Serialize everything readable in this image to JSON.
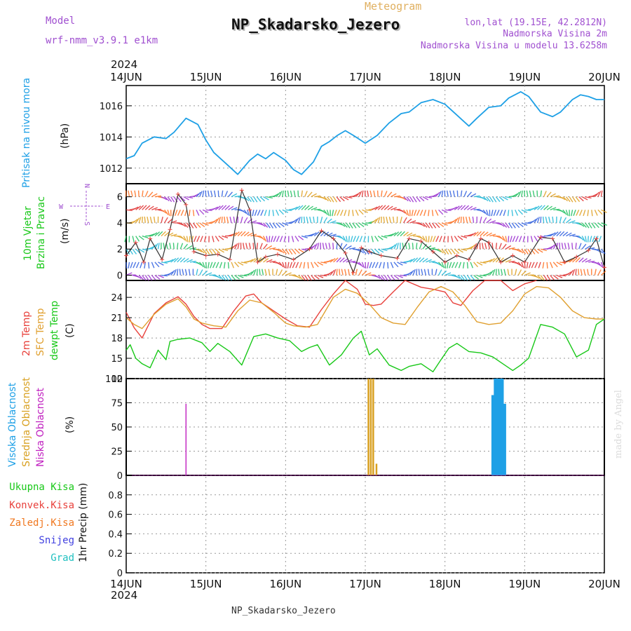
{
  "header": {
    "model_label": "Model",
    "model_name": "wrf-nmm_v3.9.1 e1km",
    "meteogram_label": "Meteogram",
    "station_title": "NP_Skadarsko_Jezero",
    "coords": "lon,lat (19.15E, 42.2812N)",
    "altitude": "Nadmorska Visina 2m",
    "model_altitude": "Nadmorska Visina u modelu 13.6258m"
  },
  "footer": {
    "station": "NP_Skadarsko_Jezero",
    "credit": "made by Angel"
  },
  "time_axis": {
    "year": "2024",
    "labels": [
      "14JUN",
      "15JUN",
      "16JUN",
      "17JUN",
      "18JUN",
      "19JUN",
      "20JUN"
    ]
  },
  "panels": {
    "pressure": {
      "title": "Pritisak na nivou mora",
      "unit": "(hPa)"
    },
    "wind": {
      "title_1": "10m Vjetar",
      "title_2": "Brzina i Pravac",
      "unit": "(m/s)",
      "compass": {
        "n": "N",
        "s": "S",
        "e": "E",
        "w": "W"
      }
    },
    "temp": {
      "t2m": "2m Temp",
      "sfc": "SFC Temp",
      "dew": "dewpt Temp",
      "unit": "(C)"
    },
    "cloud": {
      "high": "Visoka Oblacnost",
      "mid": "Srednja Oblacnost",
      "low": "Niska Oblacnost",
      "unit": "(%)"
    },
    "precip": {
      "total": "Ukupna Kisa",
      "conv": "Konvek.Kisa",
      "snowfall": "Zaledj.Kisa",
      "snow": "Snijeg",
      "hail": "Grad",
      "unit": "1hr Precip (mm)"
    }
  },
  "colors": {
    "pressure": "#1ea0e6",
    "t2m": "#e8413c",
    "sfc": "#e0a030",
    "dew": "#18c818",
    "cloud_high": "#1ea0e6",
    "cloud_mid": "#d8a020",
    "cloud_low": "#c020c0",
    "precip_total": "#18c818",
    "precip_conv": "#e8413c",
    "precip_snowfall": "#f07820",
    "precip_snow": "#4040e0",
    "precip_hail": "#20c0c0",
    "title_purple": "#a050d0",
    "meteogram_orange": "#e0b060"
  },
  "chart_data": [
    {
      "type": "line",
      "name": "pressure",
      "ylabel": "(hPa)",
      "ylim": [
        1011,
        1017.3
      ],
      "yticks": [
        1012,
        1014,
        1016
      ],
      "x": [
        0,
        0.1,
        0.2,
        0.35,
        0.5,
        0.6,
        0.75,
        0.9,
        1.0,
        1.1,
        1.25,
        1.4,
        1.55,
        1.65,
        1.75,
        1.85,
        2.0,
        2.1,
        2.2,
        2.35,
        2.45,
        2.55,
        2.65,
        2.75,
        2.85,
        3.0,
        3.15,
        3.3,
        3.45,
        3.55,
        3.7,
        3.85,
        4.0,
        4.15,
        4.3,
        4.4,
        4.55,
        4.7,
        4.8,
        4.95,
        5.05,
        5.2,
        5.35,
        5.45,
        5.6,
        5.7,
        5.8,
        5.9,
        6.0
      ],
      "y": [
        1012.6,
        1012.8,
        1013.6,
        1014.0,
        1013.9,
        1014.3,
        1015.2,
        1014.8,
        1013.8,
        1013.0,
        1012.3,
        1011.6,
        1012.5,
        1012.9,
        1012.6,
        1013.0,
        1012.5,
        1011.9,
        1011.6,
        1012.4,
        1013.4,
        1013.7,
        1014.1,
        1014.4,
        1014.1,
        1013.6,
        1014.1,
        1014.9,
        1015.5,
        1015.6,
        1016.2,
        1016.4,
        1016.1,
        1015.4,
        1014.7,
        1015.2,
        1015.9,
        1016.0,
        1016.5,
        1016.9,
        1016.6,
        1015.6,
        1015.3,
        1015.6,
        1016.4,
        1016.7,
        1016.6,
        1016.4,
        1016.4
      ]
    },
    {
      "type": "line",
      "name": "wind_speed",
      "ylabel": "(m/s)",
      "ylim": [
        -0.4,
        7
      ],
      "yticks": [
        0,
        2,
        4,
        6
      ],
      "x": [
        0,
        0.12,
        0.22,
        0.3,
        0.45,
        0.55,
        0.65,
        0.75,
        0.85,
        1.0,
        1.15,
        1.3,
        1.45,
        1.55,
        1.65,
        1.75,
        1.9,
        2.1,
        2.3,
        2.45,
        2.6,
        2.75,
        2.85,
        2.95,
        3.05,
        3.2,
        3.4,
        3.55,
        3.7,
        3.85,
        4.0,
        4.15,
        4.3,
        4.45,
        4.55,
        4.7,
        4.85,
        5.0,
        5.2,
        5.35,
        5.5,
        5.65,
        5.8,
        5.9,
        6.0
      ],
      "y": [
        1.5,
        2.5,
        1.0,
        2.8,
        1.2,
        3.5,
        6.2,
        5.4,
        1.8,
        1.5,
        1.6,
        1.2,
        6.5,
        5.0,
        1.0,
        1.4,
        1.6,
        1.2,
        2.0,
        3.4,
        2.8,
        1.7,
        0.2,
        2.1,
        1.8,
        1.5,
        1.3,
        2.8,
        2.6,
        1.8,
        1.0,
        1.5,
        1.2,
        2.8,
        2.5,
        1.0,
        1.5,
        1.0,
        2.9,
        2.8,
        1.0,
        1.4,
        1.9,
        2.8,
        0.6
      ]
    },
    {
      "type": "line",
      "name": "temperature",
      "ylabel": "(C)",
      "ylim": [
        12,
        26.5
      ],
      "yticks": [
        12,
        15,
        18,
        21,
        24
      ],
      "series": [
        {
          "name": "2m Temp",
          "x": [
            0,
            0.1,
            0.2,
            0.35,
            0.5,
            0.65,
            0.75,
            0.85,
            0.95,
            1.05,
            1.2,
            1.35,
            1.5,
            1.6,
            1.7,
            1.85,
            2.0,
            2.15,
            2.3,
            2.45,
            2.6,
            2.75,
            2.9,
            3.0,
            3.1,
            3.2,
            3.35,
            3.5,
            3.7,
            3.85,
            4.0,
            4.1,
            4.2,
            4.35,
            4.5,
            4.7,
            4.85,
            5.0,
            5.15
          ],
          "y": [
            21.8,
            19.5,
            18.0,
            21.6,
            23.2,
            24.1,
            23.0,
            21.2,
            20.0,
            19.4,
            19.4,
            22.0,
            24.2,
            24.5,
            23.2,
            22.0,
            20.8,
            19.8,
            19.6,
            22.2,
            24.5,
            26.5,
            25.2,
            23.0,
            22.8,
            23.0,
            24.8,
            26.5,
            25.5,
            25.2,
            24.8,
            23.2,
            22.8,
            25.0,
            26.5,
            26.5,
            25.0,
            26.0,
            26.5
          ]
        },
        {
          "name": "SFC Temp",
          "x": [
            0,
            0.1,
            0.2,
            0.35,
            0.5,
            0.65,
            0.75,
            0.85,
            0.95,
            1.1,
            1.25,
            1.4,
            1.55,
            1.7,
            1.85,
            2.0,
            2.1,
            2.25,
            2.4,
            2.5,
            2.6,
            2.75,
            2.9,
            3.05,
            3.2,
            3.35,
            3.5,
            3.65,
            3.8,
            3.95,
            4.1,
            4.25,
            4.4,
            4.55,
            4.7,
            4.85,
            5.0,
            5.15,
            5.3,
            5.45,
            5.6,
            5.75,
            5.9,
            6.0
          ],
          "y": [
            21.0,
            20.0,
            19.4,
            21.5,
            23.0,
            23.8,
            22.6,
            20.8,
            20.2,
            19.8,
            19.6,
            22.0,
            23.6,
            23.2,
            21.8,
            20.2,
            19.8,
            19.6,
            20.0,
            22.0,
            24.0,
            25.2,
            24.6,
            23.0,
            21.0,
            20.2,
            20.0,
            22.5,
            24.8,
            25.6,
            24.8,
            22.8,
            20.4,
            20.0,
            20.2,
            22.0,
            24.5,
            25.6,
            25.4,
            24.0,
            22.0,
            21.0,
            20.8,
            20.8
          ]
        },
        {
          "name": "dewpt Temp",
          "x": [
            0,
            0.05,
            0.12,
            0.2,
            0.3,
            0.4,
            0.5,
            0.55,
            0.65,
            0.8,
            0.95,
            1.05,
            1.15,
            1.3,
            1.45,
            1.6,
            1.75,
            1.9,
            2.05,
            2.2,
            2.3,
            2.4,
            2.55,
            2.7,
            2.85,
            2.95,
            3.05,
            3.15,
            3.3,
            3.45,
            3.55,
            3.7,
            3.85,
            3.95,
            4.05,
            4.15,
            4.3,
            4.45,
            4.6,
            4.7,
            4.85,
            4.95,
            5.05,
            5.2,
            5.35,
            5.5,
            5.65,
            5.8,
            5.9,
            6.0
          ],
          "y": [
            16.2,
            17.0,
            15.0,
            14.2,
            13.6,
            16.2,
            14.8,
            17.5,
            17.8,
            18.0,
            17.3,
            16.0,
            17.2,
            16.0,
            14.0,
            18.2,
            18.6,
            18.0,
            17.6,
            16.0,
            16.6,
            17.0,
            14.0,
            15.5,
            18.0,
            19.0,
            15.5,
            16.4,
            14.0,
            13.2,
            13.8,
            14.2,
            13.0,
            14.8,
            16.5,
            17.2,
            16.0,
            15.8,
            15.2,
            14.4,
            13.2,
            14.0,
            15.0,
            20.0,
            19.6,
            18.6,
            15.2,
            16.2,
            20.0,
            20.8
          ]
        }
      ]
    },
    {
      "type": "bar",
      "name": "cloud_cover",
      "ylabel": "(%)",
      "ylim": [
        0,
        100
      ],
      "yticks": [
        0,
        25,
        50,
        75,
        100
      ],
      "series": [
        {
          "name": "Visoka Oblacnost",
          "x": [
            4.6,
            4.63,
            4.66,
            4.69,
            4.72,
            4.75
          ],
          "values": [
            83,
            100,
            100,
            100,
            100,
            74
          ]
        },
        {
          "name": "Srednja Oblacnost",
          "x": [
            3.04,
            3.07,
            3.1,
            3.14
          ],
          "values": [
            100,
            100,
            100,
            12
          ]
        },
        {
          "name": "Niska Oblacnost",
          "x": [
            0.75
          ],
          "values": [
            74
          ]
        }
      ]
    },
    {
      "type": "bar",
      "name": "precipitation",
      "ylabel": "1hr Precip (mm)",
      "ylim": [
        0,
        1.0
      ],
      "yticks": [
        0,
        0.2,
        0.4,
        0.6,
        0.8
      ],
      "series": [
        {
          "name": "Ukupna Kisa",
          "x": [],
          "values": []
        }
      ]
    }
  ]
}
